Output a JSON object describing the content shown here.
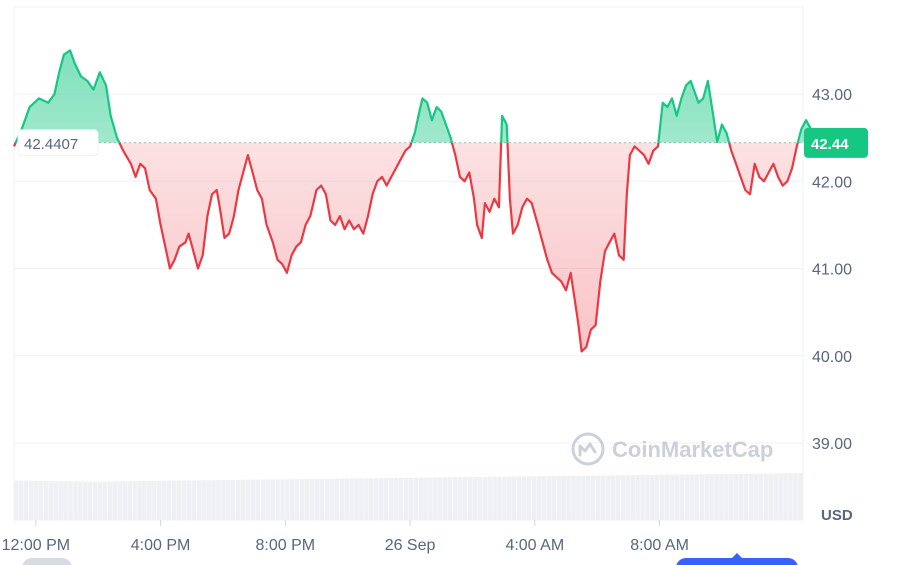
{
  "chart_data": {
    "type": "area",
    "baseline": 42.4407,
    "baseline_label": "42.4407",
    "last_value_label": "42.44",
    "y_unit": "USD",
    "ylim": [
      38.6,
      44.0
    ],
    "y_ticks": [
      {
        "value": 43.0,
        "label": "43.00"
      },
      {
        "value": 42.0,
        "label": "42.00"
      },
      {
        "value": 41.0,
        "label": "41.00"
      },
      {
        "value": 40.0,
        "label": "40.00"
      },
      {
        "value": 39.0,
        "label": "39.00"
      }
    ],
    "x_ticks": [
      {
        "t": 0.7,
        "label": "12:00 PM"
      },
      {
        "t": 4.7,
        "label": "4:00 PM"
      },
      {
        "t": 8.7,
        "label": "8:00 PM"
      },
      {
        "t": 12.7,
        "label": "26 Sep"
      },
      {
        "t": 16.7,
        "label": "4:00 AM"
      },
      {
        "t": 20.7,
        "label": "8:00 AM"
      }
    ],
    "xlim": [
      0,
      25.3
    ],
    "grid": true,
    "up_color": "#16c784",
    "down_color": "#ea3943",
    "series": [
      {
        "points": [
          [
            0,
            42.4
          ],
          [
            0.25,
            42.6
          ],
          [
            0.5,
            42.85
          ],
          [
            0.8,
            42.95
          ],
          [
            1.1,
            42.9
          ],
          [
            1.3,
            43.0
          ],
          [
            1.45,
            43.25
          ],
          [
            1.6,
            43.45
          ],
          [
            1.8,
            43.5
          ],
          [
            1.95,
            43.35
          ],
          [
            2.15,
            43.2
          ],
          [
            2.35,
            43.15
          ],
          [
            2.55,
            43.05
          ],
          [
            2.75,
            43.25
          ],
          [
            2.95,
            43.1
          ],
          [
            3.1,
            42.75
          ],
          [
            3.3,
            42.5
          ],
          [
            3.5,
            42.35
          ],
          [
            3.75,
            42.2
          ],
          [
            3.9,
            42.05
          ],
          [
            4.05,
            42.2
          ],
          [
            4.2,
            42.15
          ],
          [
            4.35,
            41.9
          ],
          [
            4.55,
            41.8
          ],
          [
            4.7,
            41.5
          ],
          [
            4.85,
            41.25
          ],
          [
            5.0,
            41.0
          ],
          [
            5.15,
            41.1
          ],
          [
            5.3,
            41.25
          ],
          [
            5.5,
            41.3
          ],
          [
            5.6,
            41.4
          ],
          [
            5.75,
            41.2
          ],
          [
            5.9,
            41.0
          ],
          [
            6.05,
            41.15
          ],
          [
            6.2,
            41.6
          ],
          [
            6.35,
            41.85
          ],
          [
            6.5,
            41.9
          ],
          [
            6.6,
            41.7
          ],
          [
            6.75,
            41.35
          ],
          [
            6.9,
            41.4
          ],
          [
            7.05,
            41.6
          ],
          [
            7.2,
            41.9
          ],
          [
            7.35,
            42.1
          ],
          [
            7.5,
            42.3
          ],
          [
            7.65,
            42.1
          ],
          [
            7.8,
            41.9
          ],
          [
            7.95,
            41.8
          ],
          [
            8.1,
            41.5
          ],
          [
            8.3,
            41.3
          ],
          [
            8.45,
            41.1
          ],
          [
            8.6,
            41.05
          ],
          [
            8.75,
            40.95
          ],
          [
            8.9,
            41.15
          ],
          [
            9.05,
            41.25
          ],
          [
            9.2,
            41.3
          ],
          [
            9.35,
            41.5
          ],
          [
            9.5,
            41.6
          ],
          [
            9.7,
            41.9
          ],
          [
            9.85,
            41.95
          ],
          [
            10.0,
            41.85
          ],
          [
            10.15,
            41.55
          ],
          [
            10.3,
            41.5
          ],
          [
            10.45,
            41.6
          ],
          [
            10.6,
            41.45
          ],
          [
            10.75,
            41.55
          ],
          [
            10.9,
            41.45
          ],
          [
            11.05,
            41.5
          ],
          [
            11.2,
            41.4
          ],
          [
            11.35,
            41.6
          ],
          [
            11.5,
            41.85
          ],
          [
            11.65,
            42.0
          ],
          [
            11.8,
            42.05
          ],
          [
            11.95,
            41.95
          ],
          [
            12.1,
            42.05
          ],
          [
            12.25,
            42.15
          ],
          [
            12.4,
            42.25
          ],
          [
            12.55,
            42.35
          ],
          [
            12.7,
            42.4
          ],
          [
            12.85,
            42.55
          ],
          [
            13.0,
            42.8
          ],
          [
            13.1,
            42.95
          ],
          [
            13.25,
            42.9
          ],
          [
            13.4,
            42.7
          ],
          [
            13.55,
            42.85
          ],
          [
            13.7,
            42.8
          ],
          [
            13.85,
            42.65
          ],
          [
            14.0,
            42.5
          ],
          [
            14.15,
            42.3
          ],
          [
            14.3,
            42.05
          ],
          [
            14.45,
            42.0
          ],
          [
            14.6,
            42.1
          ],
          [
            14.75,
            41.8
          ],
          [
            14.85,
            41.5
          ],
          [
            15.0,
            41.35
          ],
          [
            15.1,
            41.75
          ],
          [
            15.25,
            41.65
          ],
          [
            15.4,
            41.8
          ],
          [
            15.55,
            41.7
          ],
          [
            15.65,
            42.75
          ],
          [
            15.8,
            42.65
          ],
          [
            15.9,
            41.8
          ],
          [
            16.0,
            41.4
          ],
          [
            16.15,
            41.5
          ],
          [
            16.3,
            41.7
          ],
          [
            16.45,
            41.8
          ],
          [
            16.6,
            41.75
          ],
          [
            16.8,
            41.5
          ],
          [
            16.95,
            41.3
          ],
          [
            17.1,
            41.1
          ],
          [
            17.25,
            40.95
          ],
          [
            17.4,
            40.9
          ],
          [
            17.55,
            40.85
          ],
          [
            17.7,
            40.75
          ],
          [
            17.85,
            40.95
          ],
          [
            18.0,
            40.6
          ],
          [
            18.1,
            40.35
          ],
          [
            18.2,
            40.05
          ],
          [
            18.35,
            40.1
          ],
          [
            18.5,
            40.3
          ],
          [
            18.65,
            40.35
          ],
          [
            18.8,
            40.85
          ],
          [
            18.95,
            41.2
          ],
          [
            19.1,
            41.3
          ],
          [
            19.25,
            41.4
          ],
          [
            19.4,
            41.15
          ],
          [
            19.55,
            41.1
          ],
          [
            19.65,
            41.85
          ],
          [
            19.75,
            42.3
          ],
          [
            19.9,
            42.4
          ],
          [
            20.05,
            42.35
          ],
          [
            20.2,
            42.3
          ],
          [
            20.35,
            42.2
          ],
          [
            20.5,
            42.35
          ],
          [
            20.65,
            42.4
          ],
          [
            20.8,
            42.9
          ],
          [
            20.95,
            42.85
          ],
          [
            21.1,
            42.95
          ],
          [
            21.25,
            42.75
          ],
          [
            21.4,
            42.95
          ],
          [
            21.55,
            43.1
          ],
          [
            21.7,
            43.15
          ],
          [
            21.8,
            43.05
          ],
          [
            21.95,
            42.9
          ],
          [
            22.1,
            42.95
          ],
          [
            22.25,
            43.15
          ],
          [
            22.4,
            42.8
          ],
          [
            22.55,
            42.45
          ],
          [
            22.7,
            42.65
          ],
          [
            22.85,
            42.55
          ],
          [
            23.0,
            42.35
          ],
          [
            23.15,
            42.2
          ],
          [
            23.3,
            42.05
          ],
          [
            23.45,
            41.9
          ],
          [
            23.6,
            41.85
          ],
          [
            23.75,
            42.2
          ],
          [
            23.9,
            42.05
          ],
          [
            24.05,
            42.0
          ],
          [
            24.2,
            42.1
          ],
          [
            24.35,
            42.2
          ],
          [
            24.5,
            42.05
          ],
          [
            24.65,
            41.95
          ],
          [
            24.8,
            42.0
          ],
          [
            24.95,
            42.15
          ],
          [
            25.1,
            42.4
          ],
          [
            25.25,
            42.6
          ],
          [
            25.4,
            42.7
          ],
          [
            25.55,
            42.6
          ],
          [
            25.7,
            42.44
          ]
        ]
      }
    ],
    "volume_fraction": [
      0.42,
      0.41,
      0.42,
      0.43,
      0.44,
      0.45,
      0.46,
      0.47,
      0.48,
      0.49,
      0.5
    ]
  },
  "watermark": "CoinMarketCap"
}
